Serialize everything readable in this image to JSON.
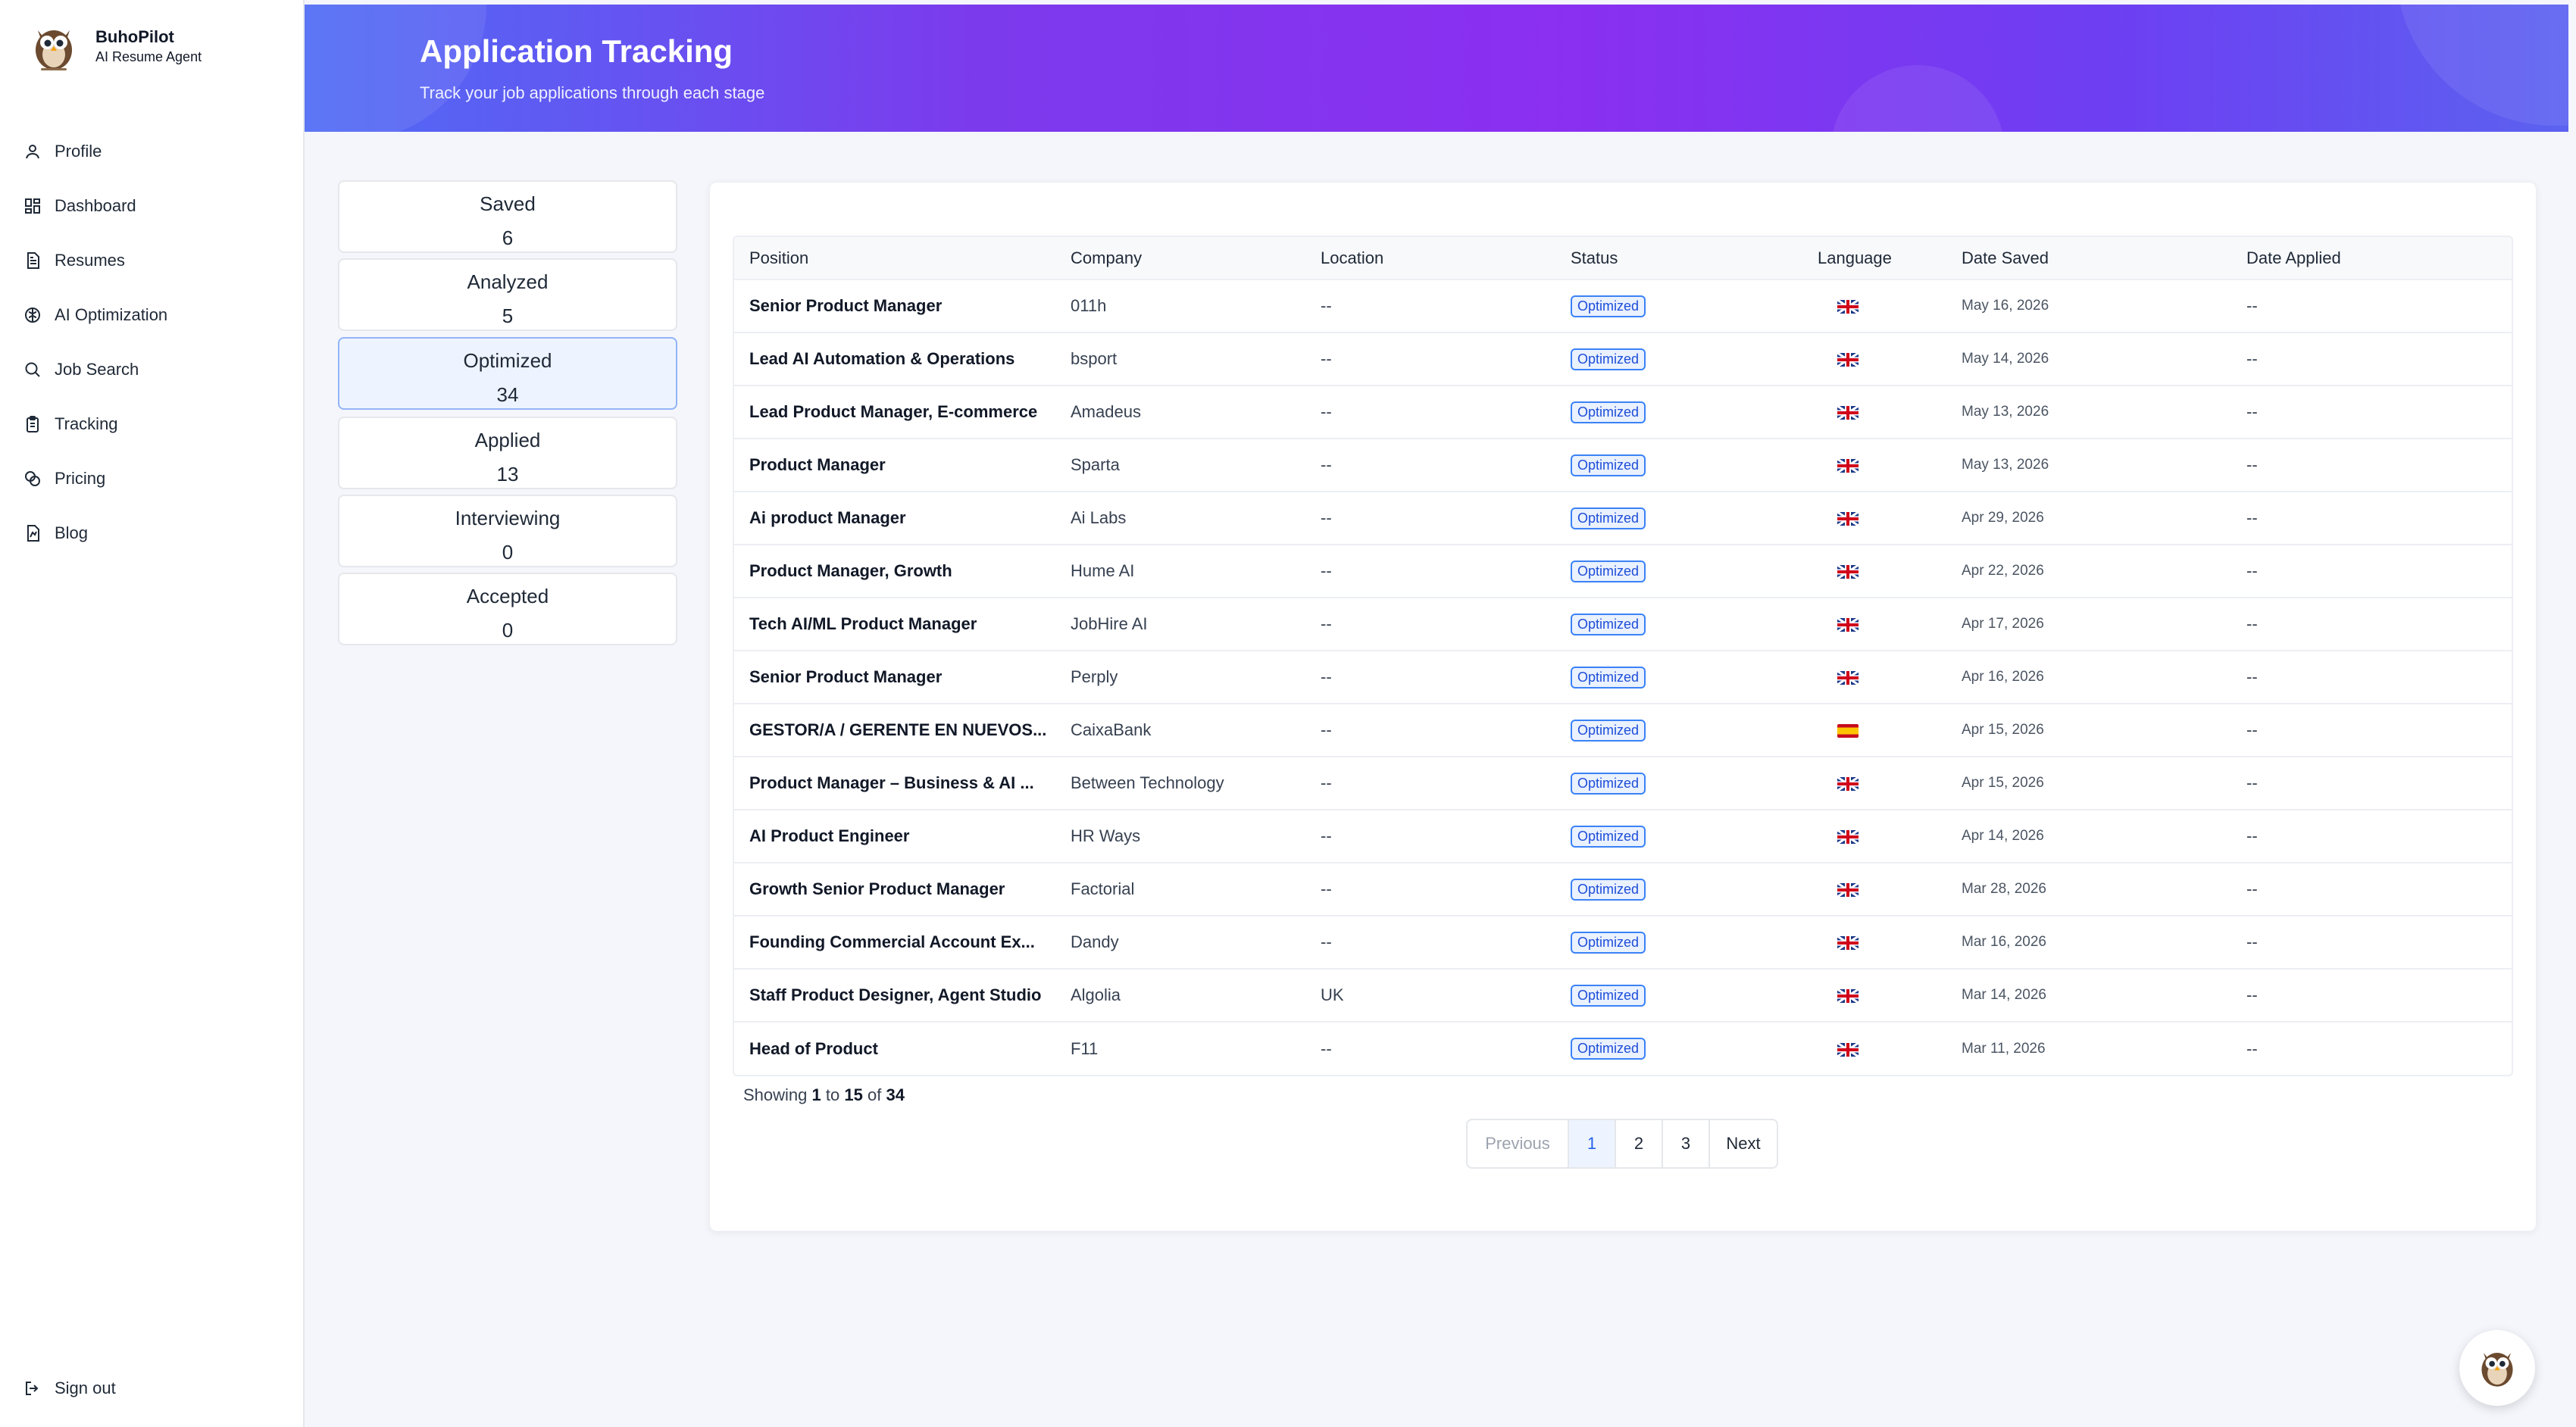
{
  "brand": {
    "name": "BuhoPilot",
    "subtitle": "AI Resume Agent"
  },
  "nav": [
    {
      "label": "Profile",
      "icon": "user-icon"
    },
    {
      "label": "Dashboard",
      "icon": "dashboard-icon"
    },
    {
      "label": "Resumes",
      "icon": "document-icon"
    },
    {
      "label": "AI Optimization",
      "icon": "ai-brain-icon"
    },
    {
      "label": "Job Search",
      "icon": "search-icon"
    },
    {
      "label": "Tracking",
      "icon": "clipboard-icon"
    },
    {
      "label": "Pricing",
      "icon": "coins-icon"
    },
    {
      "label": "Blog",
      "icon": "blog-icon"
    }
  ],
  "signout": {
    "label": "Sign out",
    "icon": "sign-out-icon"
  },
  "header": {
    "title": "Application Tracking",
    "subtitle": "Track your job applications through each stage"
  },
  "stages": [
    {
      "name": "Saved",
      "count": "6"
    },
    {
      "name": "Analyzed",
      "count": "5"
    },
    {
      "name": "Optimized",
      "count": "34",
      "active": true
    },
    {
      "name": "Applied",
      "count": "13"
    },
    {
      "name": "Interviewing",
      "count": "0"
    },
    {
      "name": "Accepted",
      "count": "0"
    }
  ],
  "table": {
    "columns": [
      "Position",
      "Company",
      "Location",
      "Status",
      "Language",
      "Date Saved",
      "Date Applied"
    ],
    "rows": [
      {
        "position": "Senior Product Manager",
        "company": "011h",
        "location": "--",
        "status": "Optimized",
        "language": "en-gb",
        "date_saved": "May 16, 2026",
        "date_applied": "--"
      },
      {
        "position": "Lead AI Automation & Operations",
        "company": "bsport",
        "location": "--",
        "status": "Optimized",
        "language": "en-gb",
        "date_saved": "May 14, 2026",
        "date_applied": "--"
      },
      {
        "position": "Lead Product Manager, E-commerce",
        "company": "Amadeus",
        "location": "--",
        "status": "Optimized",
        "language": "en-gb",
        "date_saved": "May 13, 2026",
        "date_applied": "--"
      },
      {
        "position": "Product Manager",
        "company": "Sparta",
        "location": "--",
        "status": "Optimized",
        "language": "en-gb",
        "date_saved": "May 13, 2026",
        "date_applied": "--"
      },
      {
        "position": "Ai product Manager",
        "company": "Ai Labs",
        "location": "--",
        "status": "Optimized",
        "language": "en-gb",
        "date_saved": "Apr 29, 2026",
        "date_applied": "--"
      },
      {
        "position": "Product Manager, Growth",
        "company": "Hume AI",
        "location": "--",
        "status": "Optimized",
        "language": "en-gb",
        "date_saved": "Apr 22, 2026",
        "date_applied": "--"
      },
      {
        "position": "Tech AI/ML Product Manager",
        "company": "JobHire AI",
        "location": "--",
        "status": "Optimized",
        "language": "en-gb",
        "date_saved": "Apr 17, 2026",
        "date_applied": "--"
      },
      {
        "position": "Senior Product Manager",
        "company": "Perply",
        "location": "--",
        "status": "Optimized",
        "language": "en-gb",
        "date_saved": "Apr 16, 2026",
        "date_applied": "--"
      },
      {
        "position": "GESTOR/A / GERENTE EN NUEVOS...",
        "company": "CaixaBank",
        "location": "--",
        "status": "Optimized",
        "language": "es",
        "date_saved": "Apr 15, 2026",
        "date_applied": "--"
      },
      {
        "position": "Product Manager – Business & AI ...",
        "company": "Between Technology",
        "location": "--",
        "status": "Optimized",
        "language": "en-gb",
        "date_saved": "Apr 15, 2026",
        "date_applied": "--"
      },
      {
        "position": "AI Product Engineer",
        "company": "HR Ways",
        "location": "--",
        "status": "Optimized",
        "language": "en-gb",
        "date_saved": "Apr 14, 2026",
        "date_applied": "--"
      },
      {
        "position": "Growth Senior Product Manager",
        "company": "Factorial",
        "location": "--",
        "status": "Optimized",
        "language": "en-gb",
        "date_saved": "Mar 28, 2026",
        "date_applied": "--"
      },
      {
        "position": "Founding Commercial Account Ex...",
        "company": "Dandy",
        "location": "--",
        "status": "Optimized",
        "language": "en-gb",
        "date_saved": "Mar 16, 2026",
        "date_applied": "--"
      },
      {
        "position": "Staff Product Designer, Agent Studio",
        "company": "Algolia",
        "location": "UK",
        "status": "Optimized",
        "language": "en-gb",
        "date_saved": "Mar 14, 2026",
        "date_applied": "--"
      },
      {
        "position": "Head of Product",
        "company": "F11",
        "location": "--",
        "status": "Optimized",
        "language": "en-gb",
        "date_saved": "Mar 11, 2026",
        "date_applied": "--"
      }
    ]
  },
  "showing": {
    "prefix": "Showing",
    "from": "1",
    "to_word": "to",
    "to": "15",
    "of_word": "of",
    "total": "34"
  },
  "pagination": {
    "previous": "Previous",
    "pages": [
      "1",
      "2",
      "3"
    ],
    "current": "1",
    "next": "Next"
  },
  "colors": {
    "accent": "#3b82f6",
    "header_start": "#4f6cf5",
    "header_mid": "#8b2ff0"
  }
}
